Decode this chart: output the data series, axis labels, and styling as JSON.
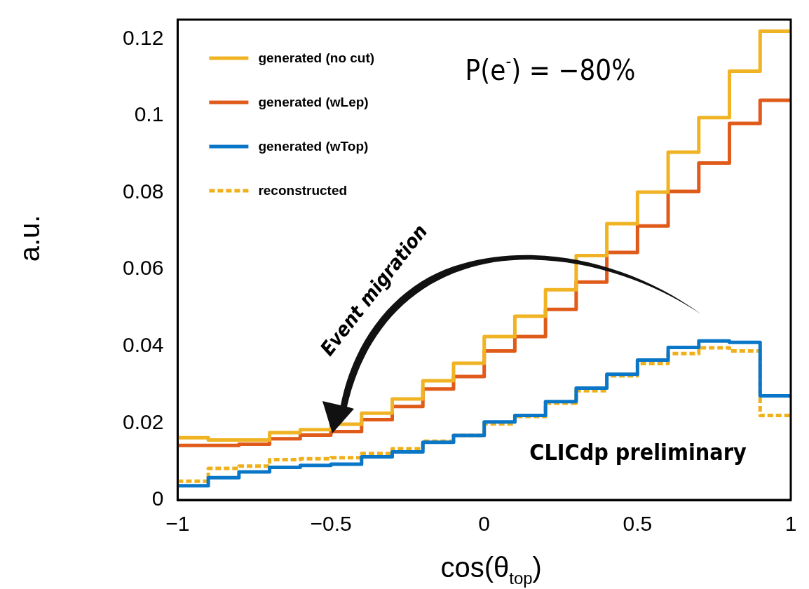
{
  "chart_data": {
    "type": "histogram",
    "xlabel": "cos(θ$_{top}$)",
    "ylabel": "a.u.",
    "bins": [
      -1,
      -0.9,
      -0.8,
      -0.7,
      -0.6,
      -0.5,
      -0.4,
      -0.3,
      -0.2,
      -0.1,
      0,
      0.1,
      0.2,
      0.3,
      0.4,
      0.5,
      0.6,
      0.7,
      0.8,
      0.9,
      1
    ],
    "series": [
      {
        "name": "generated (no cut)",
        "color": "#f0b323",
        "values": [
          0.0162,
          0.0156,
          0.0156,
          0.0175,
          0.0183,
          0.0197,
          0.0226,
          0.0263,
          0.031,
          0.0356,
          0.0425,
          0.0478,
          0.0547,
          0.0636,
          0.0719,
          0.0801,
          0.0905,
          0.0995,
          0.1116,
          0.122
        ]
      },
      {
        "name": "generated (wLep)",
        "color": "#e05a1a",
        "values": [
          0.0142,
          0.0142,
          0.0145,
          0.0159,
          0.0169,
          0.0178,
          0.0209,
          0.0243,
          0.0289,
          0.0321,
          0.0388,
          0.0425,
          0.0496,
          0.0567,
          0.0644,
          0.0713,
          0.0803,
          0.0877,
          0.098,
          0.104
        ]
      },
      {
        "name": "generated (wTop)",
        "color": "#0a76c8",
        "values": [
          0.0037,
          0.0058,
          0.0073,
          0.0085,
          0.009,
          0.0093,
          0.0112,
          0.0125,
          0.015,
          0.0168,
          0.0203,
          0.022,
          0.0256,
          0.0291,
          0.0327,
          0.0364,
          0.0397,
          0.0414,
          0.041,
          0.0271
        ]
      },
      {
        "name": "reconstructed",
        "color": "#efb01a",
        "line_style": "dotted",
        "values": [
          0.0049,
          0.0082,
          0.0088,
          0.0105,
          0.0107,
          0.011,
          0.0121,
          0.0133,
          0.0153,
          0.0168,
          0.0198,
          0.0217,
          0.0252,
          0.0284,
          0.0323,
          0.0355,
          0.0381,
          0.0396,
          0.0388,
          0.022
        ]
      }
    ],
    "xlim": [
      -1,
      1
    ],
    "xticks": [
      {
        "value": -1,
        "label": "−1"
      },
      {
        "value": -0.5,
        "label": "−0.5"
      },
      0,
      0.5,
      1
    ],
    "ylim": [
      0,
      0.125
    ],
    "yticks": [
      0,
      0.02,
      0.04,
      0.06,
      0.08,
      0.1,
      0.12
    ],
    "legend": "top left",
    "grid": false,
    "marker": "none",
    "annotations": [
      "P(e$^{-}$) = −80%",
      "Event migration",
      "CLICdp preliminary"
    ]
  }
}
